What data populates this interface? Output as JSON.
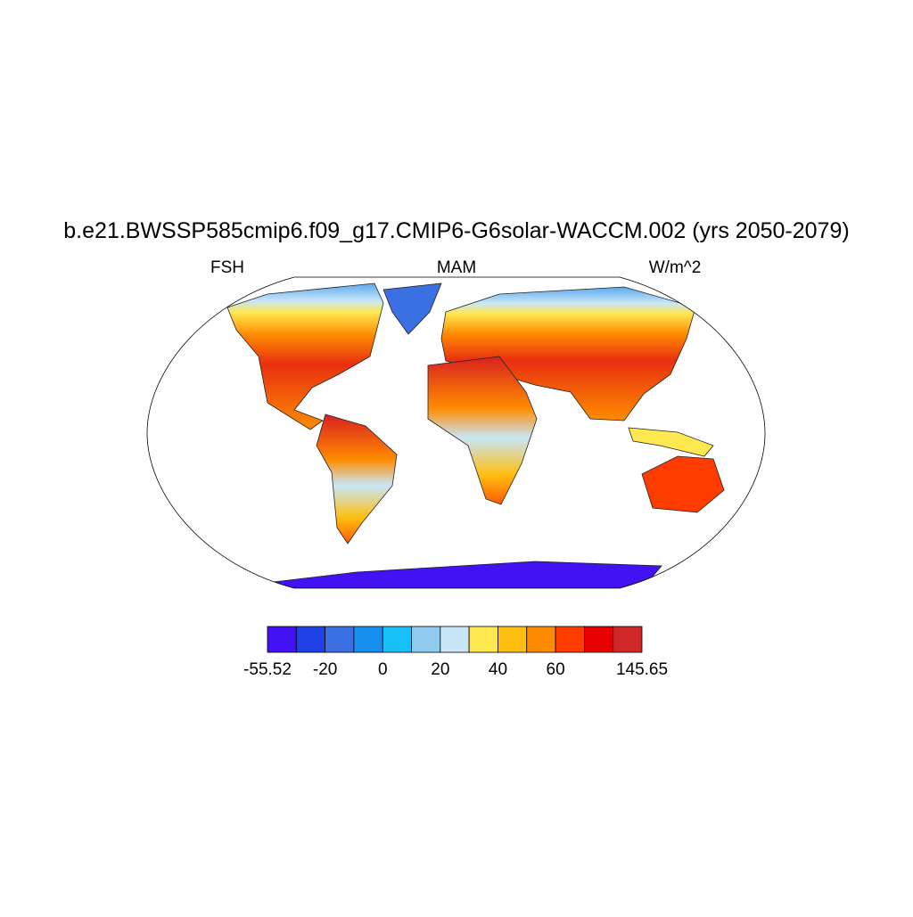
{
  "title": "b.e21.BWSSP585cmip6.f09_g17.CMIP6-G6solar-WACCM.002 (yrs 2050-2079)",
  "left_string": "FSH",
  "center_string": "MAM",
  "right_string": "W/m^2",
  "colorbar": {
    "colors": [
      "#4212f2",
      "#2040e8",
      "#3a70e2",
      "#1890f2",
      "#18c0f8",
      "#90caee",
      "#c8e6f8",
      "#ffe850",
      "#ffbf10",
      "#ff8c00",
      "#ff3c00",
      "#e60000",
      "#d02828"
    ],
    "labels": [
      "-55.52",
      "-20",
      "0",
      "20",
      "40",
      "60",
      "145.65"
    ]
  }
}
